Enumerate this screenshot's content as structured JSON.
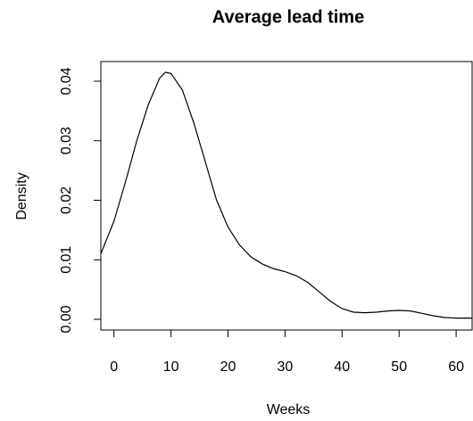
{
  "chart_data": {
    "type": "line",
    "title": "Average lead time",
    "x_label": "Weeks",
    "y_label": "Density",
    "x": [
      -2.3,
      0,
      2,
      4,
      6,
      8,
      9,
      10,
      12,
      14,
      16,
      18,
      20,
      22,
      24,
      26,
      28,
      30,
      32,
      34,
      36,
      38,
      40,
      42,
      44,
      46,
      48,
      50,
      52,
      54,
      56,
      58,
      60,
      62.8
    ],
    "series": [
      {
        "name": "Density",
        "color": "#000000",
        "values": [
          0.011,
          0.0165,
          0.023,
          0.03,
          0.036,
          0.0405,
          0.0415,
          0.0413,
          0.0385,
          0.033,
          0.0265,
          0.02,
          0.0155,
          0.0125,
          0.0105,
          0.0093,
          0.0085,
          0.008,
          0.0073,
          0.0062,
          0.0046,
          0.003,
          0.0018,
          0.0012,
          0.0011,
          0.0012,
          0.0014,
          0.0015,
          0.0014,
          0.001,
          0.0006,
          0.0003,
          0.0002,
          0.0002
        ]
      }
    ],
    "xlim": [
      -2.3,
      62.8
    ],
    "ylim": [
      -0.0018,
      0.0433
    ],
    "xticks": [
      0,
      10,
      20,
      30,
      40,
      50,
      60
    ],
    "yticks": [
      {
        "value": 0,
        "label": "0.00"
      },
      {
        "value": 0.01,
        "label": "0.01"
      },
      {
        "value": 0.02,
        "label": "0.02"
      },
      {
        "value": 0.03,
        "label": "0.03"
      },
      {
        "value": 0.04,
        "label": "0.04"
      }
    ]
  }
}
